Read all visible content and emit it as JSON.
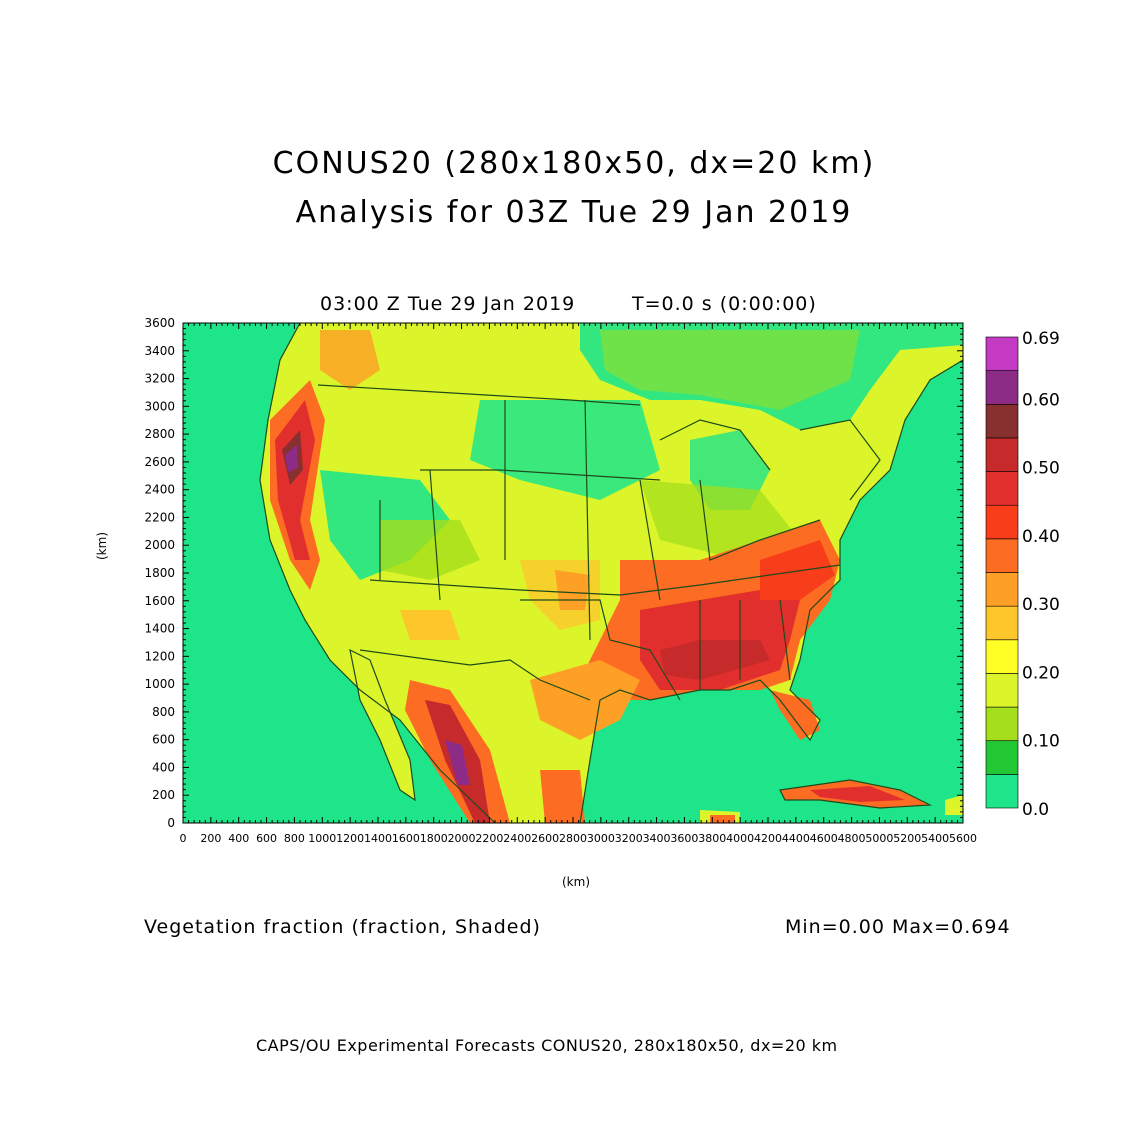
{
  "title": {
    "line1": "CONUS20 (280x180x50, dx=20 km)",
    "line2": "Analysis for 03Z Tue 29 Jan 2019"
  },
  "subtitle": {
    "time": "03:00 Z Tue 29 Jan 2019",
    "tstep": "T=0.0 s (0:00:00)"
  },
  "axes": {
    "x_label": "(km)",
    "y_label": "(km)",
    "x_ticks": [
      "0",
      "200",
      "400",
      "600",
      "800",
      "1000",
      "1200",
      "1400",
      "1600",
      "1800",
      "2000",
      "2200",
      "2400",
      "2600",
      "2800",
      "3000",
      "3200",
      "3400",
      "3600",
      "3800",
      "4000",
      "4200",
      "4400",
      "4600",
      "4800",
      "5000",
      "5200",
      "5400",
      "5600"
    ],
    "y_ticks": [
      "0",
      "200",
      "400",
      "600",
      "800",
      "1000",
      "1200",
      "1400",
      "1600",
      "1800",
      "2000",
      "2200",
      "2400",
      "2600",
      "2800",
      "3000",
      "3200",
      "3400",
      "3600"
    ],
    "x_range": [
      0,
      5600
    ],
    "y_range": [
      0,
      3600
    ]
  },
  "colorbar": {
    "labels": [
      "0.0",
      "0.10",
      "0.20",
      "0.30",
      "0.40",
      "0.50",
      "0.60",
      "0.69"
    ],
    "colors": [
      "#1fe58a",
      "#22c833",
      "#a4de1c",
      "#dcf52a",
      "#fffe25",
      "#fdc72c",
      "#fe9f26",
      "#fc6c22",
      "#f83d1a",
      "#e12f2e",
      "#c62a2a",
      "#883030",
      "#8c2c86",
      "#c43ac2"
    ],
    "tick_values": [
      0.0,
      0.1,
      0.2,
      0.3,
      0.4,
      0.5,
      0.6,
      0.69
    ]
  },
  "field": {
    "name": "Vegetation fraction (fraction, Shaded)",
    "stats": "Min=0.00 Max=0.694"
  },
  "footer": "CAPS/OU Experimental Forecasts  CONUS20, 280x180x50, dx=20 km",
  "map_colors": {
    "ocean": "#1fe58a",
    "boundary": "#1f4a1a"
  }
}
